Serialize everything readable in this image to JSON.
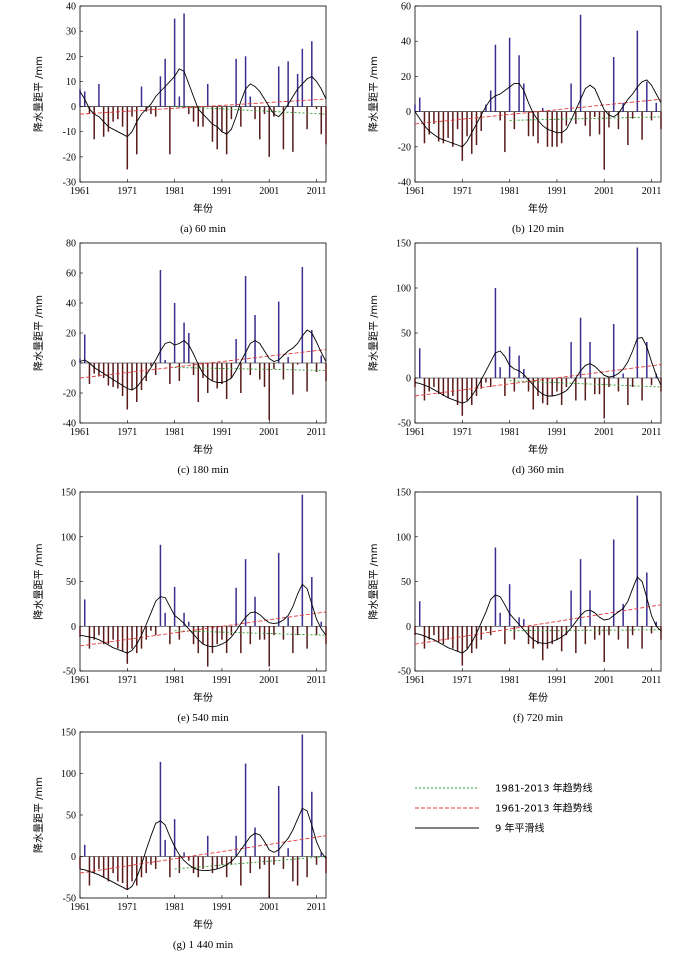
{
  "legend": {
    "items": [
      {
        "label": "1981-2013 年趋势线",
        "color": "#2a9a2a",
        "dash": "2,2"
      },
      {
        "label": "1961-2013 年趋势线",
        "color": "#e23a3a",
        "dash": "4,2"
      },
      {
        "label": "9 年平滑线",
        "color": "#000000",
        "dash": ""
      }
    ]
  },
  "colors": {
    "positive": "#3a2f8f",
    "negative": "#5a1a1a",
    "smooth": "#000000",
    "trend_all": "#e23a3a",
    "trend_recent": "#2a9a2a"
  },
  "chart_data": [
    {
      "type": "bar",
      "caption": "(a) 60 min",
      "xlabel": "年份",
      "ylabel": "降水量距平 /mm",
      "xlim": [
        1961,
        2013
      ],
      "xticks": [
        1961,
        1971,
        1981,
        1991,
        2001,
        2011
      ],
      "ylim": [
        -30,
        40
      ],
      "yticks": [
        -30,
        -20,
        -10,
        0,
        10,
        20,
        30,
        40
      ],
      "x": [
        1961,
        1962,
        1963,
        1964,
        1965,
        1966,
        1967,
        1968,
        1969,
        1970,
        1971,
        1972,
        1973,
        1974,
        1975,
        1976,
        1977,
        1978,
        1979,
        1980,
        1981,
        1982,
        1983,
        1984,
        1985,
        1986,
        1987,
        1988,
        1989,
        1990,
        1991,
        1992,
        1993,
        1994,
        1995,
        1996,
        1997,
        1998,
        1999,
        2000,
        2001,
        2002,
        2003,
        2004,
        2005,
        2006,
        2007,
        2008,
        2009,
        2010,
        2011,
        2012,
        2013
      ],
      "anomaly": [
        7,
        6,
        -3,
        -13,
        9,
        -12,
        -10,
        -6,
        -5,
        -8,
        -25,
        -4,
        -19,
        8,
        -2,
        -3,
        -4,
        12,
        19,
        -19,
        35,
        4,
        37,
        -3,
        -6,
        -8,
        -8,
        9,
        -14,
        -17,
        -10,
        -19,
        -5,
        19,
        -8,
        20,
        4,
        -5,
        -13,
        -3,
        -20,
        -4,
        16,
        -17,
        18,
        -18,
        13,
        23,
        -9,
        26,
        -1,
        -11,
        -15
      ],
      "smooth": [
        6,
        3,
        -1,
        -3,
        -4,
        -6,
        -8,
        -9,
        -10,
        -11,
        -12,
        -10,
        -6,
        -3,
        -1,
        1,
        4,
        6,
        8,
        10,
        12,
        15,
        14,
        9,
        4,
        -1,
        -3,
        -5,
        -7,
        -8,
        -10,
        -11,
        -9,
        -4,
        2,
        7,
        9,
        8,
        6,
        3,
        0,
        -3,
        -4,
        -2,
        1,
        4,
        7,
        9,
        11,
        12,
        10,
        7,
        3
      ],
      "trend_1961_2013": [
        -3,
        3
      ],
      "trend_1981_2013": [
        0,
        -3
      ]
    },
    {
      "type": "bar",
      "caption": "(b) 120 min",
      "xlabel": "年份",
      "ylabel": "降水量距平 /mm",
      "xlim": [
        1961,
        2013
      ],
      "xticks": [
        1961,
        1971,
        1981,
        1991,
        2001,
        2011
      ],
      "ylim": [
        -40,
        60
      ],
      "yticks": [
        -40,
        -20,
        0,
        20,
        40,
        60
      ],
      "x": [
        1961,
        1962,
        1963,
        1964,
        1965,
        1966,
        1967,
        1968,
        1969,
        1970,
        1971,
        1972,
        1973,
        1974,
        1975,
        1976,
        1977,
        1978,
        1979,
        1980,
        1981,
        1982,
        1983,
        1984,
        1985,
        1986,
        1987,
        1988,
        1989,
        1990,
        1991,
        1992,
        1993,
        1994,
        1995,
        1996,
        1997,
        1998,
        1999,
        2000,
        2001,
        2002,
        2003,
        2004,
        2005,
        2006,
        2007,
        2008,
        2009,
        2010,
        2011,
        2012,
        2013
      ],
      "anomaly": [
        4,
        8,
        -18,
        -13,
        -7,
        -17,
        -18,
        -15,
        -20,
        -10,
        -28,
        -14,
        -24,
        -19,
        -11,
        4,
        12,
        38,
        -5,
        -23,
        42,
        -10,
        32,
        16,
        -14,
        -14,
        -18,
        2,
        -20,
        -20,
        -20,
        -18,
        -8,
        16,
        -7,
        55,
        -8,
        -14,
        -3,
        -13,
        -33,
        -9,
        31,
        -10,
        5,
        -19,
        -4,
        46,
        -16,
        17,
        -5,
        5,
        -10
      ],
      "smooth": [
        0,
        -4,
        -8,
        -11,
        -13,
        -15,
        -16,
        -17,
        -18,
        -19,
        -20,
        -17,
        -12,
        -7,
        -2,
        3,
        7,
        9,
        10,
        12,
        14,
        16,
        16,
        12,
        5,
        -1,
        -5,
        -8,
        -10,
        -11,
        -12,
        -12,
        -10,
        -5,
        1,
        7,
        13,
        15,
        13,
        7,
        1,
        -2,
        -3,
        -1,
        3,
        7,
        10,
        14,
        17,
        18,
        15,
        10,
        5
      ],
      "trend_1961_2013": [
        -7,
        7
      ],
      "trend_1981_2013": [
        -5,
        -3
      ]
    },
    {
      "type": "bar",
      "caption": "(c) 180 min",
      "xlabel": "年份",
      "ylabel": "降水量距平 /mm",
      "xlim": [
        1961,
        2013
      ],
      "xticks": [
        1961,
        1971,
        1981,
        1991,
        2001,
        2011
      ],
      "ylim": [
        -40,
        80
      ],
      "yticks": [
        -40,
        -20,
        0,
        20,
        40,
        60,
        80
      ],
      "x": [
        1961,
        1962,
        1963,
        1964,
        1965,
        1966,
        1967,
        1968,
        1969,
        1970,
        1971,
        1972,
        1973,
        1974,
        1975,
        1976,
        1977,
        1978,
        1979,
        1980,
        1981,
        1982,
        1983,
        1984,
        1985,
        1986,
        1987,
        1988,
        1989,
        1990,
        1991,
        1992,
        1993,
        1994,
        1995,
        1996,
        1997,
        1998,
        1999,
        2000,
        2001,
        2002,
        2003,
        2004,
        2005,
        2006,
        2007,
        2008,
        2009,
        2010,
        2011,
        2012,
        2013
      ],
      "anomaly": [
        3,
        19,
        -14,
        -7,
        -9,
        -10,
        -15,
        -16,
        -17,
        -22,
        -31,
        -18,
        -26,
        -18,
        -12,
        -2,
        -8,
        62,
        2,
        -14,
        40,
        -12,
        27,
        20,
        -8,
        -26,
        -10,
        -20,
        -12,
        -17,
        -14,
        -24,
        -10,
        16,
        -20,
        58,
        -8,
        32,
        -11,
        -16,
        -38,
        -4,
        41,
        -11,
        4,
        -21,
        -1,
        64,
        -19,
        22,
        -6,
        5,
        -12
      ],
      "smooth": [
        1,
        2,
        0,
        -3,
        -5,
        -7,
        -9,
        -11,
        -13,
        -15,
        -17,
        -18,
        -16,
        -12,
        -8,
        -3,
        2,
        8,
        13,
        14,
        12,
        13,
        15,
        12,
        6,
        -1,
        -7,
        -10,
        -12,
        -13,
        -13,
        -12,
        -10,
        -5,
        1,
        7,
        13,
        15,
        13,
        8,
        3,
        1,
        2,
        5,
        8,
        10,
        13,
        18,
        22,
        20,
        14,
        7,
        1
      ],
      "trend_1961_2013": [
        -10,
        9
      ],
      "trend_1981_2013": [
        -3,
        -5
      ]
    },
    {
      "type": "bar",
      "caption": "(d) 360 min",
      "xlabel": "年份",
      "ylabel": "降水量距平 /mm",
      "xlim": [
        1961,
        2013
      ],
      "xticks": [
        1961,
        1971,
        1981,
        1991,
        2001,
        2011
      ],
      "ylim": [
        -50,
        150
      ],
      "yticks": [
        -50,
        0,
        50,
        100,
        150
      ],
      "x": [
        1961,
        1962,
        1963,
        1964,
        1965,
        1966,
        1967,
        1968,
        1969,
        1970,
        1971,
        1972,
        1973,
        1974,
        1975,
        1976,
        1977,
        1978,
        1979,
        1980,
        1981,
        1982,
        1983,
        1984,
        1985,
        1986,
        1987,
        1988,
        1989,
        1990,
        1991,
        1992,
        1993,
        1994,
        1995,
        1996,
        1997,
        1998,
        1999,
        2000,
        2001,
        2002,
        2003,
        2004,
        2005,
        2006,
        2007,
        2008,
        2009,
        2010,
        2011,
        2012,
        2013
      ],
      "anomaly": [
        -10,
        33,
        -25,
        -15,
        -10,
        -18,
        -20,
        -22,
        -20,
        -30,
        -42,
        -25,
        -30,
        -20,
        -12,
        -5,
        -10,
        100,
        12,
        -20,
        35,
        -15,
        25,
        10,
        -15,
        -35,
        -20,
        -28,
        -30,
        -20,
        -15,
        -30,
        -10,
        40,
        -25,
        67,
        -25,
        40,
        -18,
        -18,
        -45,
        -10,
        60,
        -15,
        5,
        -30,
        -10,
        145,
        -25,
        40,
        -8,
        5,
        -15
      ],
      "smooth": [
        -5,
        -6,
        -8,
        -10,
        -13,
        -16,
        -19,
        -22,
        -24,
        -26,
        -28,
        -26,
        -20,
        -12,
        -2,
        8,
        18,
        28,
        30,
        24,
        14,
        10,
        8,
        4,
        -2,
        -8,
        -14,
        -18,
        -20,
        -20,
        -19,
        -17,
        -14,
        -8,
        0,
        8,
        14,
        16,
        13,
        8,
        3,
        1,
        2,
        5,
        10,
        18,
        30,
        44,
        45,
        35,
        18,
        3,
        -8
      ],
      "trend_1961_2013": [
        -20,
        15
      ],
      "trend_1981_2013": [
        -3,
        -10
      ]
    },
    {
      "type": "bar",
      "caption": "(e) 540 min",
      "xlabel": "年份",
      "ylabel": "降水量距平 /mm",
      "xlim": [
        1961,
        2013
      ],
      "xticks": [
        1961,
        1971,
        1981,
        1991,
        2001,
        2011
      ],
      "ylim": [
        -50,
        150
      ],
      "yticks": [
        -50,
        0,
        50,
        100,
        150
      ],
      "x": [
        1961,
        1962,
        1963,
        1964,
        1965,
        1966,
        1967,
        1968,
        1969,
        1970,
        1971,
        1972,
        1973,
        1974,
        1975,
        1976,
        1977,
        1978,
        1979,
        1980,
        1981,
        1982,
        1983,
        1984,
        1985,
        1986,
        1987,
        1988,
        1989,
        1990,
        1991,
        1992,
        1993,
        1994,
        1995,
        1996,
        1997,
        1998,
        1999,
        2000,
        2001,
        2002,
        2003,
        2004,
        2005,
        2006,
        2007,
        2008,
        2009,
        2010,
        2011,
        2012,
        2013
      ],
      "anomaly": [
        -12,
        30,
        -25,
        -15,
        -10,
        -20,
        -20,
        -15,
        -25,
        -28,
        -42,
        -25,
        -30,
        -25,
        -15,
        -5,
        -10,
        91,
        15,
        -20,
        44,
        -15,
        15,
        5,
        -20,
        -30,
        -20,
        -45,
        -30,
        -20,
        -15,
        -30,
        -10,
        43,
        -30,
        75,
        -20,
        33,
        -15,
        -15,
        -45,
        -10,
        82,
        -15,
        10,
        -30,
        -10,
        147,
        -25,
        55,
        -10,
        5,
        -20
      ],
      "smooth": [
        -10,
        -11,
        -12,
        -13,
        -15,
        -18,
        -21,
        -24,
        -26,
        -28,
        -30,
        -27,
        -20,
        -10,
        2,
        15,
        28,
        33,
        32,
        22,
        12,
        8,
        3,
        -3,
        -9,
        -15,
        -20,
        -22,
        -23,
        -22,
        -20,
        -17,
        -12,
        -5,
        3,
        10,
        15,
        16,
        13,
        8,
        4,
        3,
        4,
        7,
        12,
        22,
        36,
        47,
        42,
        25,
        8,
        -3,
        -10
      ],
      "trend_1961_2013": [
        -22,
        16
      ],
      "trend_1981_2013": [
        -5,
        -10
      ]
    },
    {
      "type": "bar",
      "caption": "(f) 720 min",
      "xlabel": "年份",
      "ylabel": "降水量距平 /mm",
      "xlim": [
        1961,
        2013
      ],
      "xticks": [
        1961,
        1971,
        1981,
        1991,
        2001,
        2011
      ],
      "ylim": [
        -50,
        150
      ],
      "yticks": [
        -50,
        0,
        50,
        100,
        150
      ],
      "x": [
        1961,
        1962,
        1963,
        1964,
        1965,
        1966,
        1967,
        1968,
        1969,
        1970,
        1971,
        1972,
        1973,
        1974,
        1975,
        1976,
        1977,
        1978,
        1979,
        1980,
        1981,
        1982,
        1983,
        1984,
        1985,
        1986,
        1987,
        1988,
        1989,
        1990,
        1991,
        1992,
        1993,
        1994,
        1995,
        1996,
        1997,
        1998,
        1999,
        2000,
        2001,
        2002,
        2003,
        2004,
        2005,
        2006,
        2007,
        2008,
        2009,
        2010,
        2011,
        2012,
        2013
      ],
      "anomaly": [
        -10,
        28,
        -25,
        -15,
        -10,
        -18,
        -20,
        -15,
        -25,
        -28,
        -44,
        -25,
        -30,
        -25,
        -15,
        -5,
        -10,
        88,
        15,
        -20,
        47,
        -15,
        10,
        8,
        -20,
        -25,
        -20,
        -38,
        -25,
        -20,
        -15,
        -28,
        -10,
        40,
        -30,
        75,
        -20,
        40,
        -15,
        -10,
        -40,
        -10,
        97,
        -15,
        25,
        -25,
        -10,
        146,
        -25,
        60,
        -8,
        5,
        -15
      ],
      "smooth": [
        -8,
        -9,
        -11,
        -13,
        -15,
        -18,
        -21,
        -24,
        -26,
        -28,
        -30,
        -26,
        -18,
        -8,
        4,
        16,
        30,
        35,
        33,
        24,
        14,
        8,
        2,
        -4,
        -10,
        -15,
        -18,
        -19,
        -19,
        -17,
        -15,
        -12,
        -8,
        -2,
        5,
        12,
        17,
        18,
        15,
        10,
        7,
        8,
        12,
        16,
        20,
        28,
        42,
        55,
        50,
        32,
        12,
        0,
        -5
      ],
      "trend_1961_2013": [
        -20,
        24
      ],
      "trend_1981_2013": [
        -5,
        -4
      ]
    },
    {
      "type": "bar",
      "caption": "(g) 1 440 min",
      "xlabel": "年份",
      "ylabel": "降水量距平 /mm",
      "xlim": [
        1961,
        2013
      ],
      "xticks": [
        1961,
        1971,
        1981,
        1991,
        2001,
        2011
      ],
      "ylim": [
        -50,
        150
      ],
      "yticks": [
        -50,
        0,
        50,
        100,
        150
      ],
      "x": [
        1961,
        1962,
        1963,
        1964,
        1965,
        1966,
        1967,
        1968,
        1969,
        1970,
        1971,
        1972,
        1973,
        1974,
        1975,
        1976,
        1977,
        1978,
        1979,
        1980,
        1981,
        1982,
        1983,
        1984,
        1985,
        1986,
        1987,
        1988,
        1989,
        1990,
        1991,
        1992,
        1993,
        1994,
        1995,
        1996,
        1997,
        1998,
        1999,
        2000,
        2001,
        2002,
        2003,
        2004,
        2005,
        2006,
        2007,
        2008,
        2009,
        2010,
        2011,
        2012,
        2013
      ],
      "anomaly": [
        -15,
        14,
        -35,
        -20,
        -15,
        -25,
        -30,
        -20,
        -30,
        -32,
        -40,
        -30,
        -35,
        -25,
        -20,
        -10,
        -15,
        114,
        20,
        -25,
        45,
        -20,
        5,
        -5,
        -20,
        -25,
        -15,
        25,
        -20,
        -15,
        -10,
        -25,
        -10,
        25,
        -35,
        112,
        -20,
        35,
        -15,
        -10,
        -50,
        -10,
        85,
        -15,
        10,
        -30,
        -35,
        147,
        -25,
        78,
        -10,
        5,
        -20
      ],
      "smooth": [
        -15,
        -16,
        -18,
        -20,
        -22,
        -25,
        -28,
        -31,
        -34,
        -37,
        -40,
        -36,
        -25,
        -10,
        8,
        25,
        40,
        43,
        38,
        24,
        12,
        2,
        -5,
        -10,
        -14,
        -16,
        -17,
        -17,
        -16,
        -15,
        -13,
        -10,
        -6,
        0,
        8,
        16,
        24,
        28,
        26,
        18,
        8,
        5,
        8,
        15,
        22,
        32,
        45,
        58,
        55,
        38,
        18,
        5,
        -2
      ],
      "trend_1961_2013": [
        -20,
        25
      ],
      "trend_1981_2013": [
        -15,
        0
      ]
    }
  ]
}
